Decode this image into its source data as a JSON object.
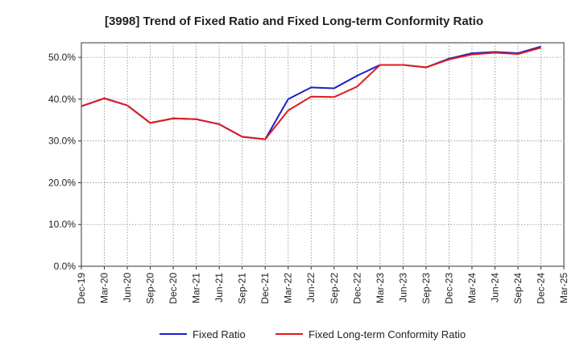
{
  "chart_data": {
    "type": "line",
    "title": "[3998]  Trend of Fixed Ratio and Fixed Long-term Conformity Ratio",
    "xlabel": "",
    "ylabel": "",
    "x": [
      "Dec-19",
      "Mar-20",
      "Jun-20",
      "Sep-20",
      "Dec-20",
      "Mar-21",
      "Jun-21",
      "Sep-21",
      "Dec-21",
      "Mar-22",
      "Jun-22",
      "Sep-22",
      "Dec-22",
      "Mar-23",
      "Jun-23",
      "Sep-23",
      "Dec-23",
      "Mar-24",
      "Jun-24",
      "Sep-24",
      "Dec-24",
      "Mar-25"
    ],
    "ylim": [
      0,
      53.5
    ],
    "yticks": [
      0,
      10,
      20,
      30,
      40,
      50
    ],
    "ytick_labels": [
      "0.0%",
      "10.0%",
      "20.0%",
      "30.0%",
      "40.0%",
      "50.0%"
    ],
    "grid": true,
    "legend_position": "bottom",
    "series": [
      {
        "name": "Fixed Ratio",
        "color": "#1f1fcc",
        "values": [
          38.3,
          40.2,
          38.5,
          34.3,
          35.4,
          35.2,
          34.0,
          31.0,
          30.4,
          40.0,
          42.8,
          42.6,
          45.6,
          48.2,
          48.2,
          47.6,
          49.7,
          51.0,
          51.3,
          51.0,
          52.6,
          null
        ]
      },
      {
        "name": "Fixed Long-term Conformity Ratio",
        "color": "#dd1c1c",
        "values": [
          38.3,
          40.2,
          38.5,
          34.3,
          35.4,
          35.2,
          34.0,
          31.0,
          30.4,
          37.3,
          40.6,
          40.5,
          43.0,
          48.2,
          48.2,
          47.6,
          49.5,
          50.7,
          51.1,
          50.8,
          52.3,
          null
        ]
      }
    ]
  }
}
